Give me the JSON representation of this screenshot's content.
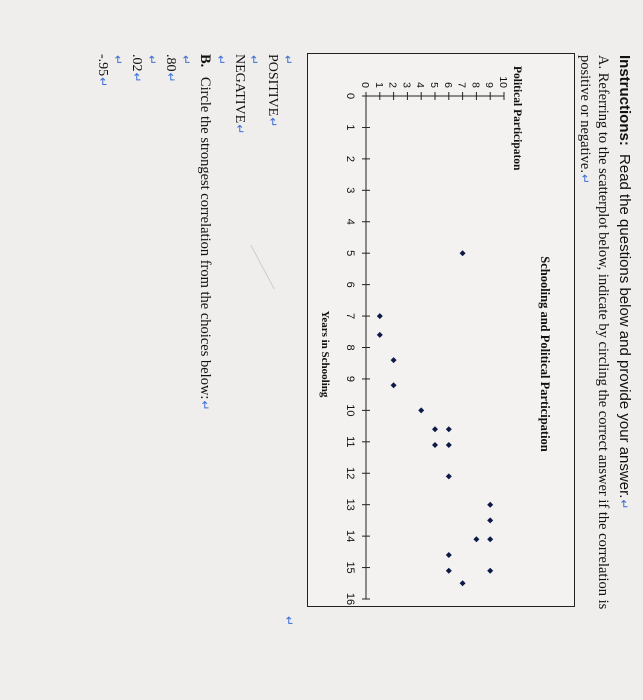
{
  "instructions": {
    "label": "Instructions:",
    "text": "Read the questions below and provide your answer."
  },
  "question_a": {
    "line1": "A. Referring to the scatterplot below, indicate by circling the correct answer if the correlation is",
    "line2": "positive or negative."
  },
  "question_b": {
    "letter": "B.",
    "text": "Circle the strongest correlation from the choices below:"
  },
  "answers_a": [
    "POSITIVE",
    "NEGATIVE"
  ],
  "answers_b": [
    ".80",
    ".02",
    "-.95"
  ],
  "colors": {
    "text": "#111111",
    "paragraph_mark": "#3c6fd6",
    "marker": "#0d1a48",
    "background": "#efeeec"
  },
  "chart_data": {
    "type": "scatter",
    "title": "Schooling and Political Participation",
    "xlabel": "Years in Schooling",
    "ylabel": "Political Participaton",
    "xlim": [
      0,
      16
    ],
    "ylim": [
      0,
      10
    ],
    "x_ticks": [
      "0",
      "1",
      "2",
      "3",
      "4",
      "5",
      "6",
      "7",
      "8",
      "9",
      "10",
      "11",
      "12",
      "13",
      "14",
      "15",
      "16"
    ],
    "y_ticks": [
      "0",
      "1",
      "2",
      "3",
      "4",
      "5",
      "6",
      "7",
      "8",
      "9",
      "10"
    ],
    "marker": "diamond",
    "grid": false,
    "points": [
      {
        "x": 5,
        "y": 7
      },
      {
        "x": 7,
        "y": 1
      },
      {
        "x": 7.6,
        "y": 1
      },
      {
        "x": 8.4,
        "y": 2
      },
      {
        "x": 9.2,
        "y": 2
      },
      {
        "x": 10,
        "y": 4
      },
      {
        "x": 10.6,
        "y": 6
      },
      {
        "x": 10.6,
        "y": 5
      },
      {
        "x": 11.1,
        "y": 6
      },
      {
        "x": 11.1,
        "y": 5
      },
      {
        "x": 12.1,
        "y": 6
      },
      {
        "x": 13,
        "y": 9
      },
      {
        "x": 13.5,
        "y": 9
      },
      {
        "x": 14.1,
        "y": 8
      },
      {
        "x": 14.1,
        "y": 9
      },
      {
        "x": 14.6,
        "y": 6
      },
      {
        "x": 15.1,
        "y": 6
      },
      {
        "x": 15.1,
        "y": 9
      },
      {
        "x": 15.5,
        "y": 7
      }
    ]
  }
}
